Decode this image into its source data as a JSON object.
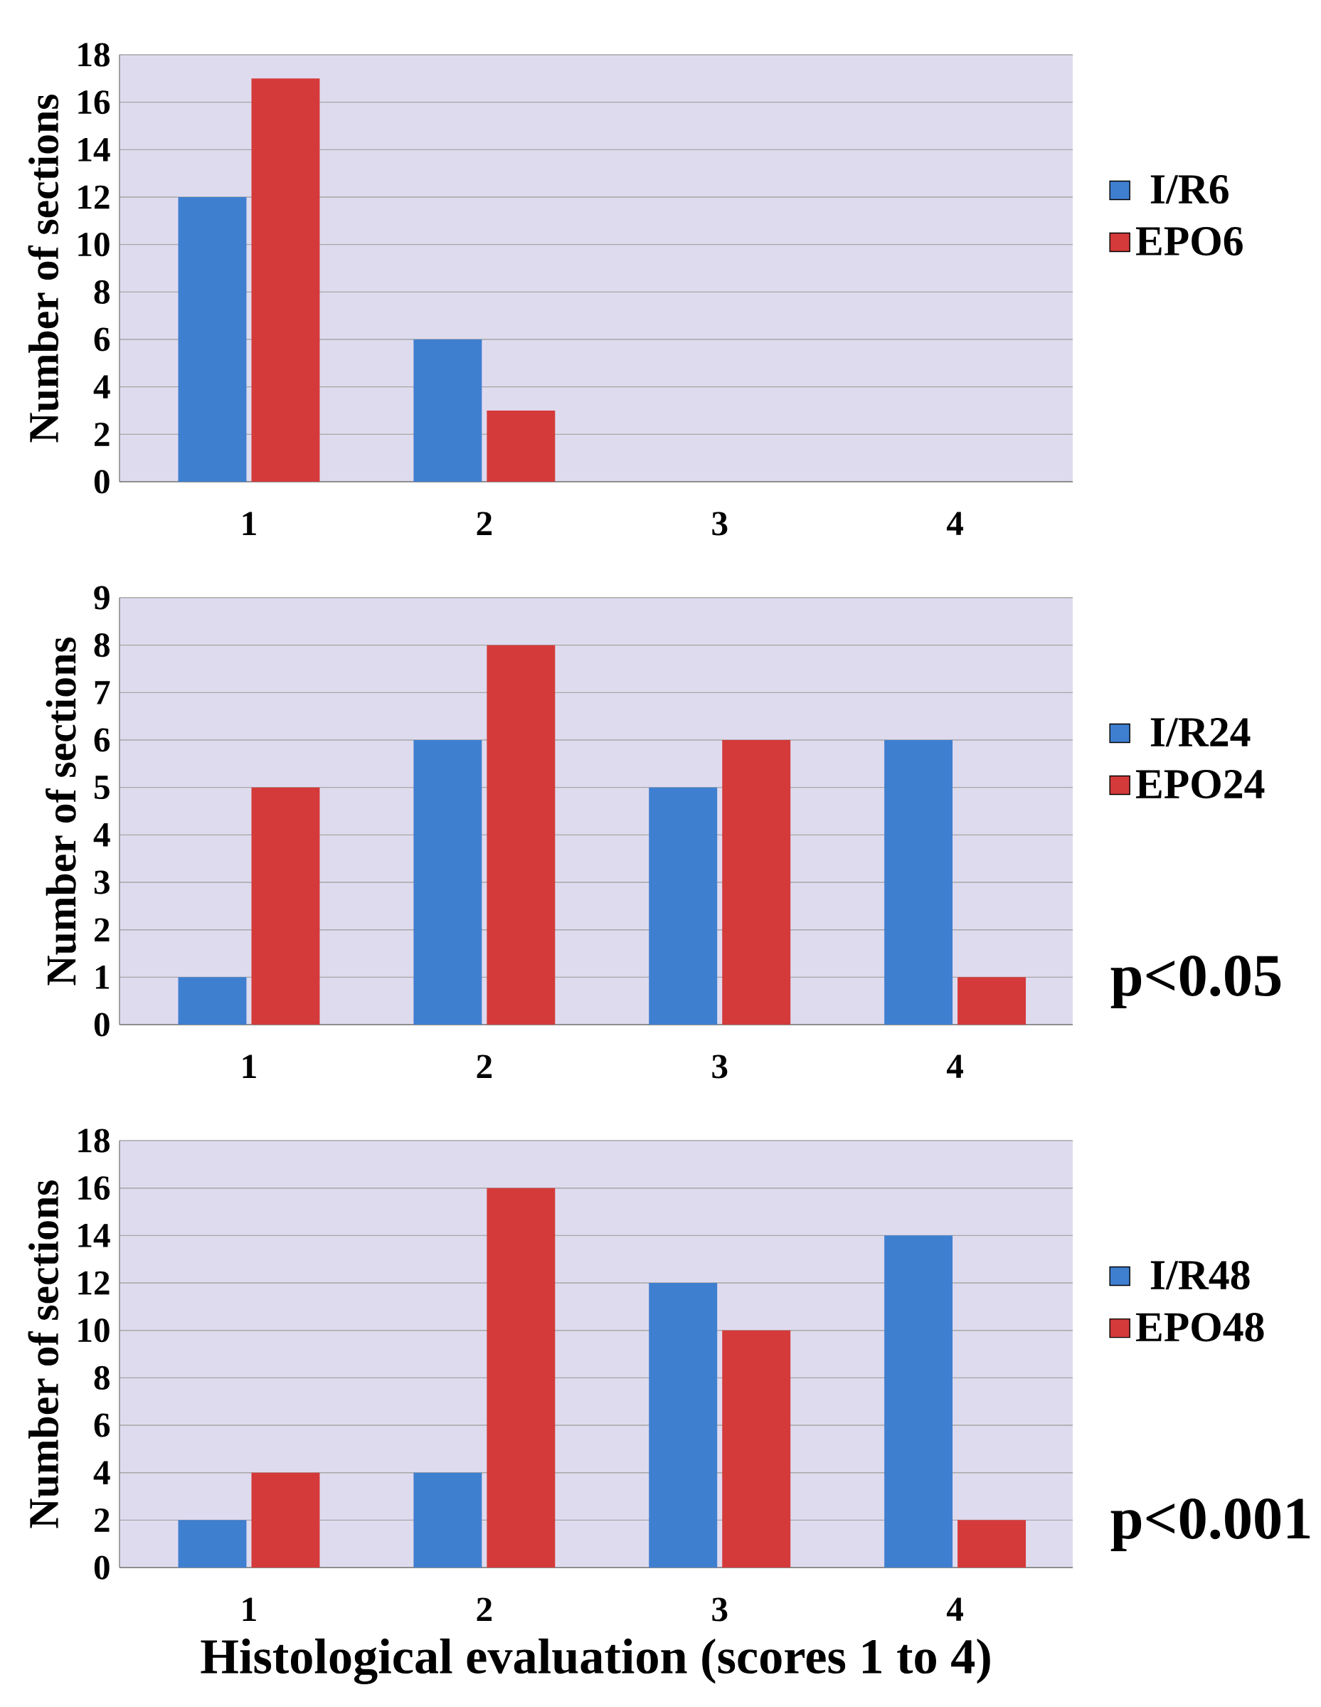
{
  "chart_data": [
    {
      "type": "bar",
      "ylabel": "Number of sections",
      "categories": [
        "1",
        "2",
        "3",
        "4"
      ],
      "ylim": [
        0,
        18
      ],
      "yticks": [
        0,
        2,
        4,
        6,
        8,
        10,
        12,
        14,
        16,
        18
      ],
      "grid": "y",
      "legend": "right",
      "series": [
        {
          "name": "I/R6",
          "color": "#3f7fd0",
          "values": [
            12,
            6,
            0,
            0
          ]
        },
        {
          "name": "EPO6",
          "color": "#d43a3a",
          "values": [
            17,
            3,
            0,
            0
          ]
        }
      ]
    },
    {
      "type": "bar",
      "ylabel": "Number of sections",
      "categories": [
        "1",
        "2",
        "3",
        "4"
      ],
      "ylim": [
        0,
        9
      ],
      "yticks": [
        0,
        1,
        2,
        3,
        4,
        5,
        6,
        7,
        8,
        9
      ],
      "grid": "y",
      "legend": "right",
      "annotations": [
        "p<0.05"
      ],
      "series": [
        {
          "name": "I/R24",
          "color": "#3f7fd0",
          "values": [
            1,
            6,
            5,
            6
          ]
        },
        {
          "name": "EPO24",
          "color": "#d43a3a",
          "values": [
            5,
            8,
            6,
            1
          ]
        }
      ]
    },
    {
      "type": "bar",
      "ylabel": "Number of sections",
      "xlabel": "Histological evaluation (scores 1 to 4)",
      "categories": [
        "1",
        "2",
        "3",
        "4"
      ],
      "ylim": [
        0,
        18
      ],
      "yticks": [
        0,
        2,
        4,
        6,
        8,
        10,
        12,
        14,
        16,
        18
      ],
      "grid": "y",
      "legend": "right",
      "annotations": [
        "p<0.001"
      ],
      "series": [
        {
          "name": "I/R48",
          "color": "#3f7fd0",
          "values": [
            2,
            4,
            12,
            14
          ]
        },
        {
          "name": "EPO48",
          "color": "#d43a3a",
          "values": [
            4,
            16,
            10,
            2
          ]
        }
      ]
    }
  ]
}
